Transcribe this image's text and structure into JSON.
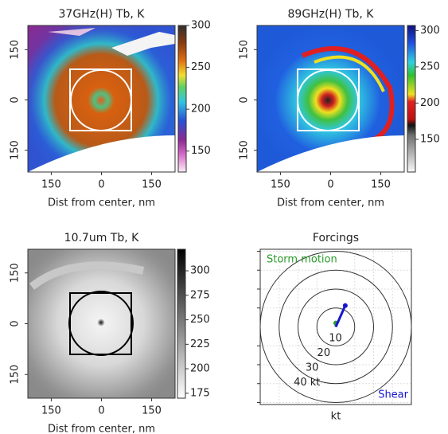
{
  "chart_data": [
    {
      "type": "image",
      "title": "37GHz(H) Tb, K",
      "xlabel": "Dist from center, nm",
      "xlim": [
        -220,
        220
      ],
      "ylim": [
        -215,
        222
      ],
      "xticks": [
        {
          "value": -150,
          "label": "150"
        },
        0,
        150
      ],
      "yticks": [
        {
          "value": -150,
          "label": "150"
        },
        0,
        150
      ],
      "clim": [
        125,
        300
      ],
      "cticks": [
        150,
        200,
        250,
        300
      ],
      "colormap": "cm37"
    },
    {
      "type": "image",
      "title": "89GHz(H) Tb, K",
      "xlabel": "Dist from center, nm",
      "xlim": [
        -220,
        220
      ],
      "ylim": [
        -215,
        222
      ],
      "xticks": [
        {
          "value": -150,
          "label": "150"
        },
        0,
        150
      ],
      "yticks": [
        {
          "value": -150,
          "label": "150"
        },
        0,
        150
      ],
      "clim": [
        105,
        307
      ],
      "cticks": [
        150,
        200,
        250,
        300
      ],
      "colormap": "cm89"
    },
    {
      "type": "image",
      "title": "10.7um Tb, K",
      "xlabel": "Dist from center, nm",
      "xlim": [
        -220,
        220
      ],
      "ylim": [
        -220,
        220
      ],
      "xticks": [
        {
          "value": -150,
          "label": "150"
        },
        0,
        150
      ],
      "yticks": [
        {
          "value": -150,
          "label": "150"
        },
        0,
        150
      ],
      "clim": [
        170,
        322
      ],
      "cticks": [
        175,
        200,
        225,
        250,
        275,
        300
      ],
      "colormap": "cmir"
    },
    {
      "type": "polar",
      "title": "Forcings",
      "xlabel": "kt",
      "xlim": [
        -40,
        40
      ],
      "ylim": [
        -40,
        40
      ],
      "rings": [
        10,
        20,
        30,
        {
          "value": 40,
          "label": "40 kt"
        }
      ],
      "series": [
        {
          "name": "Storm motion",
          "color": "#2a9a2a",
          "values": [
            0,
            2
          ]
        },
        {
          "name": "Shear",
          "color": "#1515d0",
          "values": [
            5,
            11
          ]
        }
      ]
    }
  ]
}
